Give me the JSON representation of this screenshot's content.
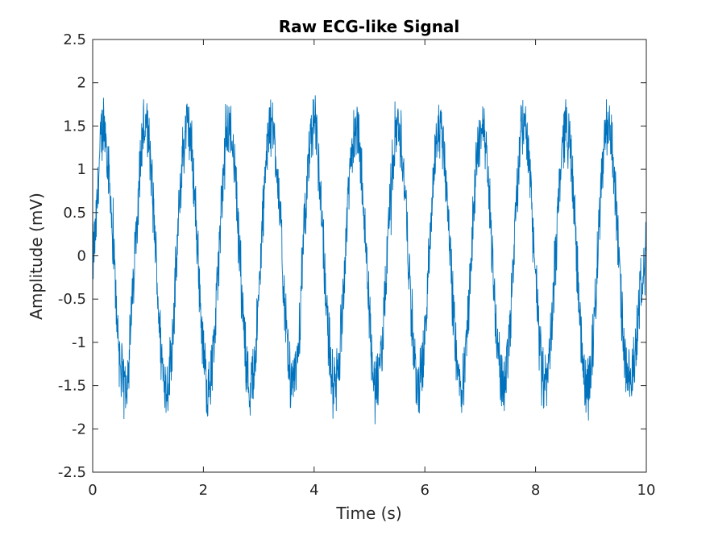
{
  "chart_data": {
    "type": "line",
    "title": "Raw ECG-like Signal",
    "xlabel": "Time (s)",
    "ylabel": "Amplitude (mV)",
    "xlim": [
      0,
      10
    ],
    "ylim": [
      -2.5,
      2.5
    ],
    "x_ticks": [
      0,
      2,
      4,
      6,
      8,
      10
    ],
    "x_tick_labels": [
      "0",
      "2",
      "4",
      "6",
      "8",
      "10"
    ],
    "y_ticks": [
      -2.5,
      -2,
      -1.5,
      -1,
      -0.5,
      0,
      0.5,
      1,
      1.5,
      2,
      2.5
    ],
    "y_tick_labels": [
      "-2.5",
      "-2",
      "-1.5",
      "-1",
      "-0.5",
      "0",
      "0.5",
      "1",
      "1.5",
      "2",
      "2.5"
    ],
    "grid": false,
    "series": [
      {
        "color": "#0072bd",
        "x": [
          0,
          0.19,
          0.57,
          0.95,
          1.33,
          1.71,
          2.09,
          2.47,
          2.85,
          3.23,
          3.61,
          3.99,
          4.37,
          4.75,
          5.13,
          5.51,
          5.89,
          6.27,
          6.65,
          7.03,
          7.41,
          7.79,
          8.17,
          8.55,
          8.93,
          9.31,
          9.69,
          10
        ],
        "values": [
          0,
          1.5,
          -1.5,
          1.5,
          -1.5,
          1.5,
          -1.5,
          1.5,
          -1.5,
          1.5,
          -1.5,
          1.5,
          -1.5,
          1.5,
          -1.5,
          1.5,
          -1.5,
          1.5,
          -1.5,
          1.5,
          -1.5,
          1.5,
          -1.5,
          1.5,
          -1.5,
          1.5,
          -1.5,
          0
        ],
        "noise_peak_to_peak": 0.9
      }
    ]
  }
}
